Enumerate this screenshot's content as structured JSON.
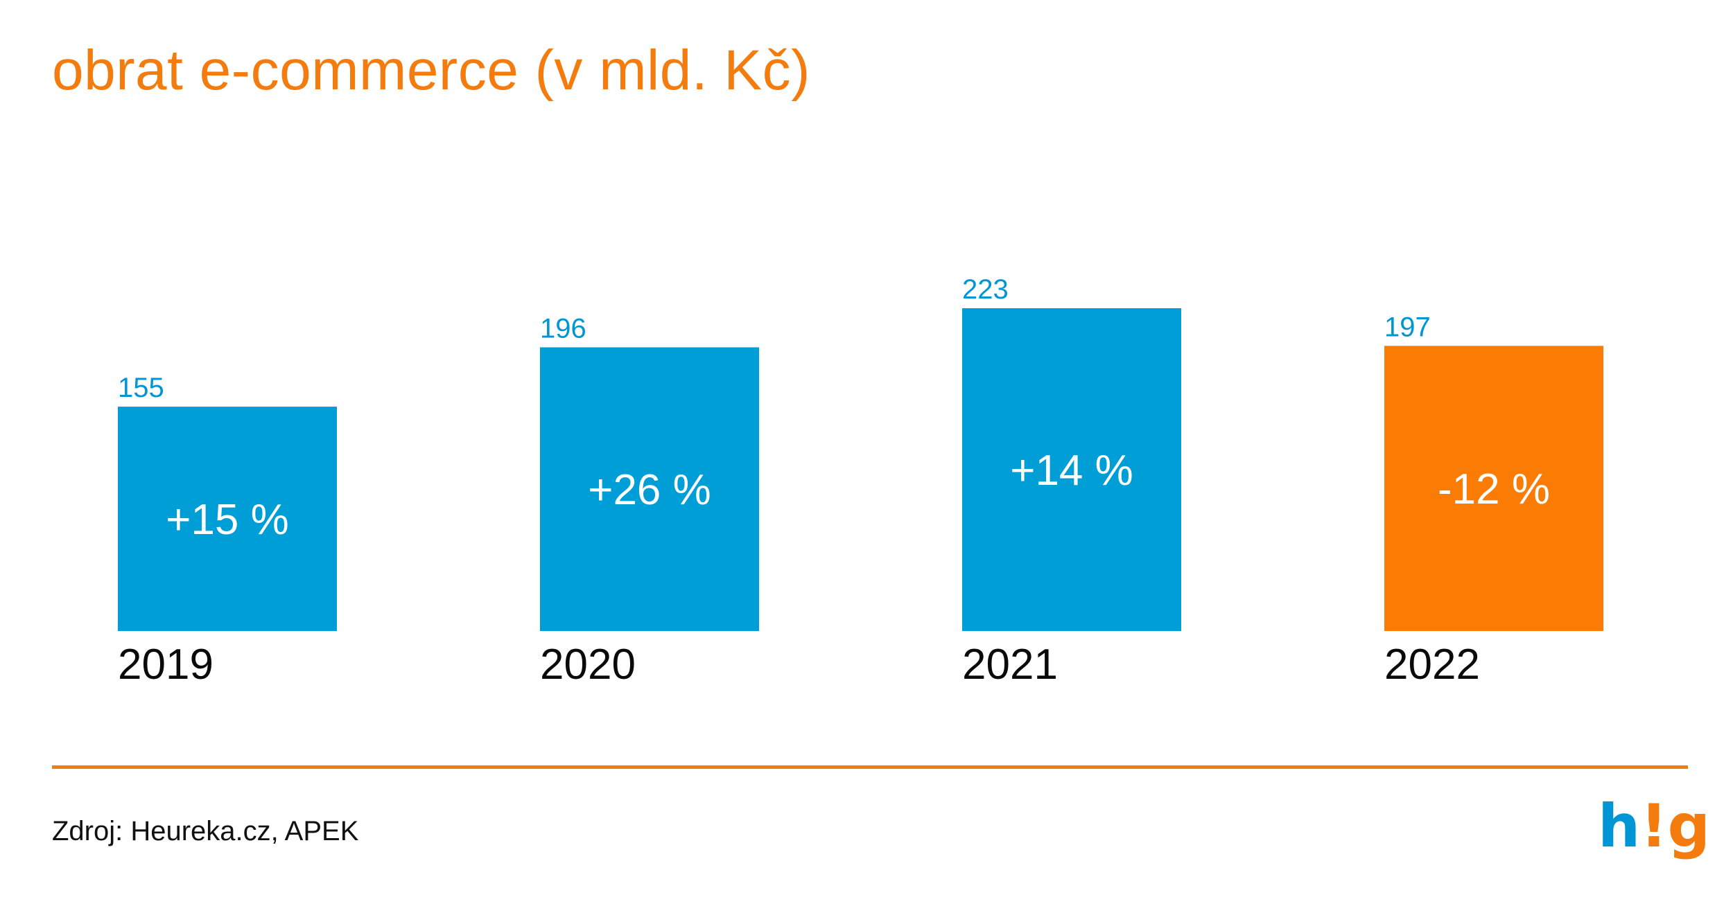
{
  "colors": {
    "accent": "#f47c0e",
    "bar_blue": "#009ed6",
    "bar_orange": "#fb7c05",
    "label_blue": "#0096d6",
    "text_dark": "#0a0a0a"
  },
  "chart_data": {
    "type": "bar",
    "title": "obrat e-commerce (v mld. Kč)",
    "xlabel": "",
    "ylabel": "",
    "categories": [
      "2019",
      "2020",
      "2021",
      "2022"
    ],
    "values": [
      155,
      196,
      223,
      197
    ],
    "value_labels": [
      "155",
      "196",
      "223",
      "197"
    ],
    "change_labels": [
      "+15 %",
      "+26 %",
      "+14 %",
      "-12 %"
    ],
    "highlight_index": 3,
    "ylim": [
      0,
      223
    ],
    "grid": false,
    "legend": "none"
  },
  "footer": {
    "source": "Zdroj: Heureka.cz, APEK",
    "logo_text": "h!g",
    "logo_h": "h",
    "logo_ex": "!",
    "logo_g": "g"
  }
}
